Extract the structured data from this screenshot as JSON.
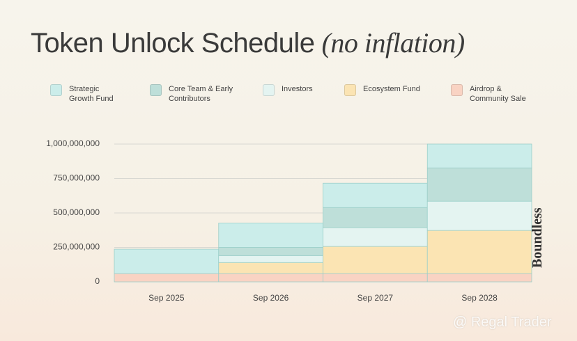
{
  "chart_data": {
    "type": "stacked-step-area",
    "title": "Token Unlock Schedule",
    "title_note": "(no inflation)",
    "categories": [
      "Sep 2025",
      "Sep 2026",
      "Sep 2027",
      "Sep 2028"
    ],
    "series": [
      {
        "name": "Airdrop & Community Sale",
        "color": "#f9d3c3",
        "values": [
          60000000,
          60000000,
          60000000,
          60000000
        ]
      },
      {
        "name": "Ecosystem Fund",
        "color": "#fbe4b3",
        "values": [
          0,
          80000000,
          197000000,
          313000000
        ]
      },
      {
        "name": "Investors",
        "color": "#e4f4f1",
        "values": [
          0,
          50000000,
          136000000,
          212000000
        ]
      },
      {
        "name": "Core Team & Early Contributors",
        "color": "#bedfd9",
        "values": [
          0,
          60000000,
          146000000,
          242000000
        ]
      },
      {
        "name": "Strategic Growth Fund",
        "color": "#cbedea",
        "values": [
          177000000,
          177000000,
          177000000,
          173000000
        ]
      }
    ],
    "legend_order": [
      4,
      3,
      2,
      1,
      0
    ],
    "ylim": [
      0,
      1000000000
    ],
    "yticks": [
      0,
      {
        "value": 250000000,
        "label": "250,000,000"
      },
      {
        "value": 500000000,
        "label": "500,000,000"
      },
      {
        "value": 750000000,
        "label": "750,000,000"
      },
      {
        "value": 1000000000,
        "label": "1,000,000,000"
      }
    ],
    "grid": true
  },
  "branding": {
    "logo": "Boundless",
    "watermark": "@ Regal Trader"
  }
}
